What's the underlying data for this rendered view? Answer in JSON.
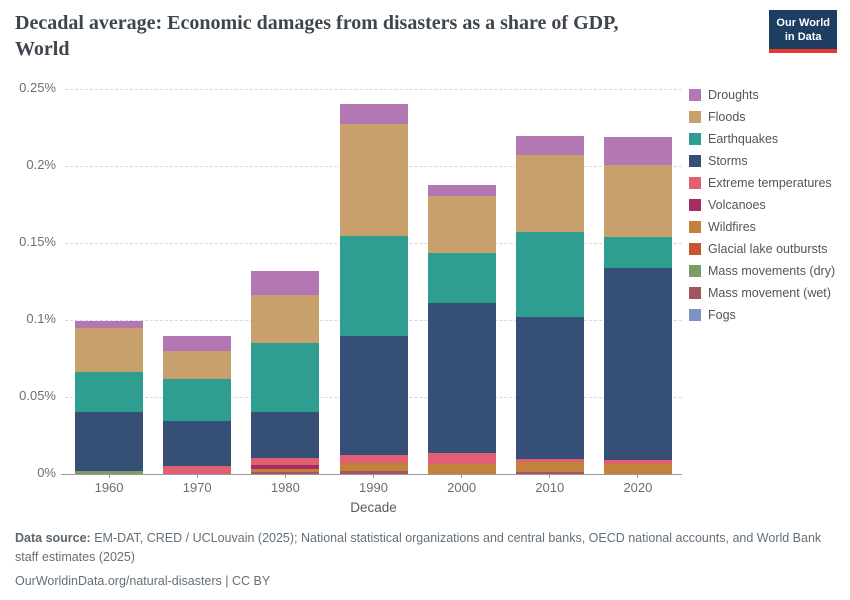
{
  "header": {
    "title_line1": "Decadal average: Economic damages from disasters as a share of GDP,",
    "title_line2": "World",
    "logo": {
      "line1": "Our World",
      "line2": "in Data"
    }
  },
  "chart_data": {
    "type": "bar",
    "stacked": true,
    "title": "Decadal average: Economic damages from disasters as a share of GDP, World",
    "xlabel": "Decade",
    "ylabel": "",
    "ylim": [
      0,
      0.25
    ],
    "grid": "dashed-horizontal",
    "legend_position": "right",
    "yticks": [
      {
        "label": "0%",
        "value": 0
      },
      {
        "label": "0.05%",
        "value": 0.05
      },
      {
        "label": "0.1%",
        "value": 0.1
      },
      {
        "label": "0.15%",
        "value": 0.15
      },
      {
        "label": "0.2%",
        "value": 0.2
      },
      {
        "label": "0.25%",
        "value": 0.25
      }
    ],
    "categories": [
      "1960",
      "1970",
      "1980",
      "1990",
      "2000",
      "2010",
      "2020"
    ],
    "unit": "% of GDP",
    "series": [
      {
        "name": "Droughts",
        "color": "#b377b4",
        "values": [
          0.0046,
          0.0097,
          0.0156,
          0.0132,
          0.0069,
          0.0123,
          0.0184
        ]
      },
      {
        "name": "Floods",
        "color": "#c8a06c",
        "values": [
          0.0288,
          0.0184,
          0.0314,
          0.0725,
          0.0374,
          0.0502,
          0.047
        ]
      },
      {
        "name": "Earthquakes",
        "color": "#2f9e90",
        "values": [
          0.026,
          0.0271,
          0.0444,
          0.0647,
          0.0325,
          0.0552,
          0.0201
        ]
      },
      {
        "name": "Storms",
        "color": "#364f77",
        "values": [
          0.038,
          0.0292,
          0.0303,
          0.0775,
          0.0974,
          0.092,
          0.1245
        ]
      },
      {
        "name": "Extreme temperatures",
        "color": "#e05f72",
        "values": [
          0,
          0.0052,
          0.0044,
          0.0054,
          0.0071,
          0.0022,
          0.0026
        ]
      },
      {
        "name": "Volcanoes",
        "color": "#a62c63",
        "values": [
          0,
          0,
          0.0026,
          0,
          0,
          0,
          0
        ]
      },
      {
        "name": "Wildfires",
        "color": "#c2813c",
        "values": [
          0,
          0,
          0.0016,
          0.005,
          0.0063,
          0.0065,
          0.0065
        ]
      },
      {
        "name": "Glacial lake outbursts",
        "color": "#c65533",
        "values": [
          0,
          0,
          0,
          0,
          0,
          0,
          0
        ]
      },
      {
        "name": "Mass movements (dry)",
        "color": "#7b9d64",
        "values": [
          0.002,
          0,
          0,
          0,
          0,
          0,
          0
        ]
      },
      {
        "name": "Mass movement (wet)",
        "color": "#a25460",
        "values": [
          0,
          0,
          0.0016,
          0.0019,
          0,
          0.001,
          0
        ]
      },
      {
        "name": "Fogs",
        "color": "#7b94c3",
        "values": [
          0,
          0,
          0,
          0,
          0,
          0,
          0
        ]
      }
    ]
  },
  "footer": {
    "source_label": "Data source:",
    "source_text": " EM-DAT, CRED / UCLouvain (2025); National statistical organizations and central banks, OECD national accounts, and World Bank staff estimates (2025)",
    "cc_line": "OurWorldinData.org/natural-disasters | CC BY"
  }
}
